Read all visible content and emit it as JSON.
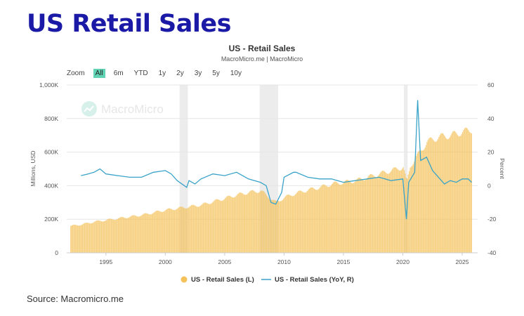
{
  "header": {
    "title": "US Retail Sales"
  },
  "chart_data": {
    "type": "bar+line",
    "title": "US - Retail Sales",
    "subtitle": "MacroMicro.me | MacroMicro",
    "watermark": "MacroMicro",
    "zoom_label": "Zoom",
    "zoom_options": [
      "All",
      "6m",
      "YTD",
      "1y",
      "2y",
      "3y",
      "5y",
      "10y"
    ],
    "zoom_selected": "All",
    "ylabel": "Millions, USD",
    "ylabel_right": "Percent",
    "ylim": [
      0,
      1000000
    ],
    "ylim_right": [
      -40,
      60
    ],
    "yticks": [
      "0",
      "200K",
      "400K",
      "600K",
      "800K",
      "1,000K"
    ],
    "yticks_right": [
      "-40",
      "-20",
      "0",
      "20",
      "40",
      "60"
    ],
    "xlim": [
      1991.7,
      2026.3
    ],
    "xticks": [
      "1995",
      "2000",
      "2005",
      "2010",
      "2015",
      "2020",
      "2025"
    ],
    "recessions": [
      [
        2001.2,
        2001.9
      ],
      [
        2007.95,
        2009.5
      ],
      [
        2020.1,
        2020.4
      ]
    ],
    "series": [
      {
        "name": "US - Retail Sales (L)",
        "color": "#f4c15a",
        "type": "bar",
        "x": [
          1992,
          1993,
          1994,
          1995,
          1996,
          1997,
          1998,
          1999,
          2000,
          2001,
          2002,
          2003,
          2004,
          2005,
          2006,
          2007,
          2008,
          2008.9,
          2009.3,
          2010,
          2011,
          2012,
          2013,
          2014,
          2015,
          2016,
          2017,
          2018,
          2019,
          2020,
          2020.3,
          2020.6,
          2021,
          2021.5,
          2022,
          2023,
          2024,
          2025,
          2025.8
        ],
        "values": [
          160000,
          170000,
          185000,
          195000,
          205000,
          215000,
          225000,
          240000,
          255000,
          265000,
          275000,
          285000,
          305000,
          325000,
          345000,
          360000,
          370000,
          320000,
          300000,
          330000,
          355000,
          375000,
          390000,
          410000,
          420000,
          430000,
          450000,
          470000,
          490000,
          510000,
          420000,
          520000,
          560000,
          610000,
          660000,
          690000,
          700000,
          720000,
          735000
        ]
      },
      {
        "name": "US - Retail Sales (YoY, R)",
        "color": "#3aa3c9",
        "type": "line",
        "x": [
          1992.9,
          1993.5,
          1994,
          1994.5,
          1995,
          1996,
          1997,
          1998,
          1999,
          2000,
          2000.5,
          2001,
          2001.8,
          2002,
          2002.5,
          2003,
          2004,
          2005,
          2006,
          2007,
          2008,
          2008.5,
          2008.9,
          2009.3,
          2009.8,
          2010,
          2010.8,
          2011,
          2012,
          2013,
          2014,
          2015,
          2016,
          2017,
          2018,
          2019,
          2020,
          2020.3,
          2020.5,
          2021,
          2021.25,
          2021.5,
          2022,
          2022.5,
          2023,
          2023.5,
          2024,
          2024.5,
          2025,
          2025.5,
          2025.8
        ],
        "values": [
          6,
          7,
          8,
          10,
          7,
          6,
          5,
          5,
          8,
          9,
          7,
          3,
          -1,
          3,
          1,
          4,
          7,
          6,
          8,
          4,
          2,
          0,
          -10,
          -11,
          -4,
          5,
          8,
          8,
          5,
          4,
          4,
          2,
          3,
          4,
          5,
          3,
          4,
          -20,
          2,
          8,
          51,
          15,
          17,
          9,
          5,
          1,
          3,
          2,
          4,
          4,
          2
        ]
      }
    ],
    "legend_position": "bottom"
  },
  "footer": {
    "source": "Source: Macromicro.me"
  }
}
